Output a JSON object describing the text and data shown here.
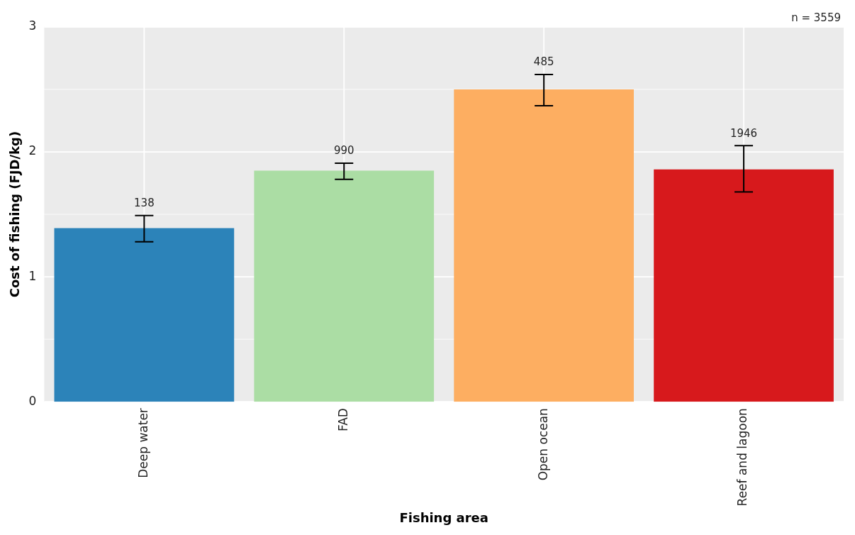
{
  "chart_data": {
    "type": "bar",
    "xlabel": "Fishing area",
    "ylabel": "Cost of fishing (FJD/kg)",
    "categories": [
      "Deep water",
      "FAD",
      "Open ocean",
      "Reef and lagoon"
    ],
    "values": [
      1.39,
      1.85,
      2.5,
      1.86
    ],
    "colors": [
      "#2c83b9",
      "#abdda4",
      "#fdae61",
      "#d7191c"
    ],
    "errors": [
      [
        1.28,
        1.49
      ],
      [
        1.78,
        1.91
      ],
      [
        2.37,
        2.62
      ],
      [
        1.68,
        2.05
      ]
    ],
    "ylim": [
      0,
      3
    ],
    "yticks": [
      0,
      1,
      2,
      3
    ],
    "grid": true,
    "legend": false,
    "annotations": [
      "n = 3559",
      {
        "text": "138",
        "x": "Deep water",
        "y": 1.49
      },
      {
        "text": "990",
        "x": "FAD",
        "y": 1.91
      },
      {
        "text": "485",
        "x": "Open ocean",
        "y": 2.62
      },
      {
        "text": "1946",
        "x": "Reef and lagoon",
        "y": 2.05
      }
    ]
  }
}
